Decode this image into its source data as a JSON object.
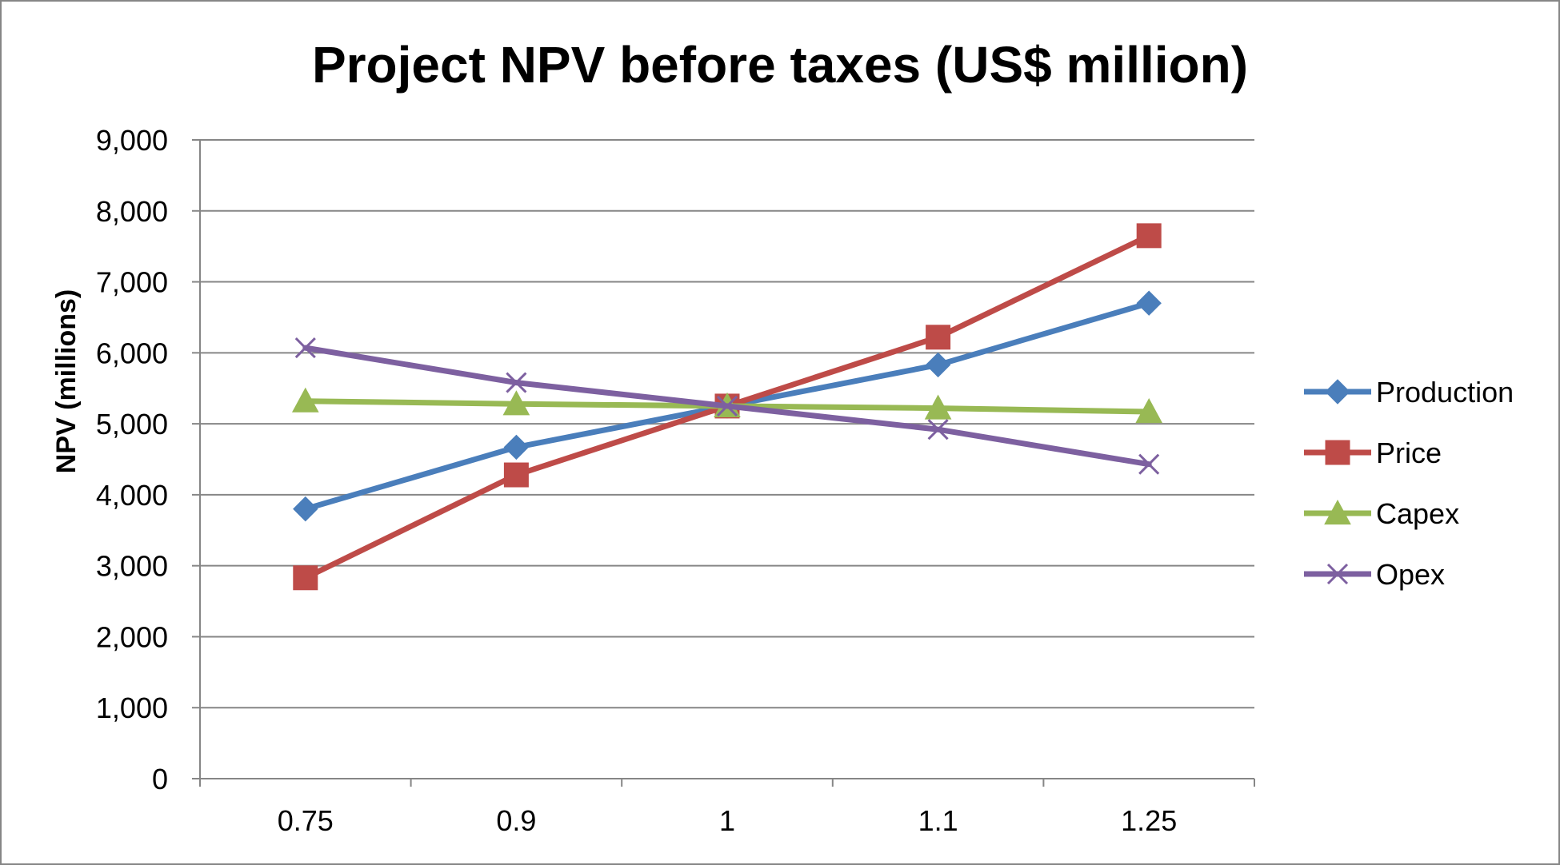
{
  "chart_data": {
    "type": "line",
    "title": "Project NPV before taxes (US$ million)",
    "xlabel": "",
    "ylabel": "NPV (millions)",
    "x": [
      "0.75",
      "0.9",
      "1",
      "1.1",
      "1.25"
    ],
    "ylim": [
      0,
      9000
    ],
    "yticks": [
      0,
      1000,
      2000,
      3000,
      4000,
      5000,
      6000,
      7000,
      8000,
      9000
    ],
    "ytick_labels": [
      "0",
      "1,000",
      "2,000",
      "3,000",
      "4,000",
      "5,000",
      "6,000",
      "7,000",
      "8,000",
      "9,000"
    ],
    "grid": true,
    "legend": "right",
    "series": [
      {
        "name": "Production",
        "color": "#4A7EBB",
        "marker": "diamond",
        "values": [
          3800,
          4670,
          5250,
          5830,
          6700
        ]
      },
      {
        "name": "Price",
        "color": "#BE4B48",
        "marker": "square",
        "values": [
          2830,
          4280,
          5250,
          6220,
          7650
        ]
      },
      {
        "name": "Capex",
        "color": "#98B954",
        "marker": "triangle",
        "values": [
          5320,
          5280,
          5250,
          5220,
          5170
        ]
      },
      {
        "name": "Opex",
        "color": "#7D60A0",
        "marker": "x",
        "values": [
          6070,
          5580,
          5250,
          4920,
          4430
        ]
      }
    ]
  }
}
